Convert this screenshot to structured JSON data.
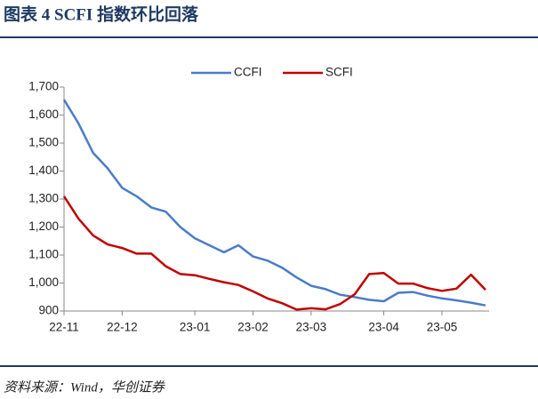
{
  "chart_data": {
    "type": "line",
    "title": "图表 4 SCFI 指数环比回落",
    "source": "资料来源：Wind，华创证券",
    "categories": [
      "22-11",
      null,
      null,
      null,
      "22-12",
      null,
      null,
      null,
      null,
      "23-01",
      null,
      null,
      null,
      "23-02",
      null,
      null,
      null,
      "23-03",
      null,
      null,
      null,
      null,
      "23-04",
      null,
      null,
      null,
      "23-05",
      null,
      null,
      null
    ],
    "series": [
      {
        "name": "CCFI",
        "color": "#4a7cc7",
        "values": [
          1655,
          1570,
          1465,
          1410,
          1340,
          1310,
          1270,
          1255,
          1200,
          1160,
          1135,
          1110,
          1135,
          1095,
          1080,
          1055,
          1020,
          990,
          978,
          958,
          950,
          940,
          935,
          965,
          968,
          955,
          945,
          938,
          930,
          920
        ]
      },
      {
        "name": "SCFI",
        "color": "#c00000",
        "values": [
          1310,
          1230,
          1170,
          1138,
          1125,
          1105,
          1105,
          1060,
          1032,
          1028,
          1015,
          1003,
          993,
          970,
          945,
          928,
          905,
          910,
          906,
          925,
          960,
          1032,
          1036,
          998,
          998,
          982,
          972,
          980,
          1030,
          976
        ]
      }
    ],
    "ylim": [
      900,
      1700
    ],
    "yticks": [
      900,
      {
        "value": 1000,
        "label": "1,000"
      },
      {
        "value": 1100,
        "label": "1,100"
      },
      {
        "value": 1200,
        "label": "1,200"
      },
      {
        "value": 1300,
        "label": "1,300"
      },
      {
        "value": 1400,
        "label": "1,400"
      },
      {
        "value": 1500,
        "label": "1,500"
      },
      {
        "value": 1600,
        "label": "1,600"
      },
      {
        "value": 1700,
        "label": "1,700"
      }
    ],
    "legend": "top"
  }
}
